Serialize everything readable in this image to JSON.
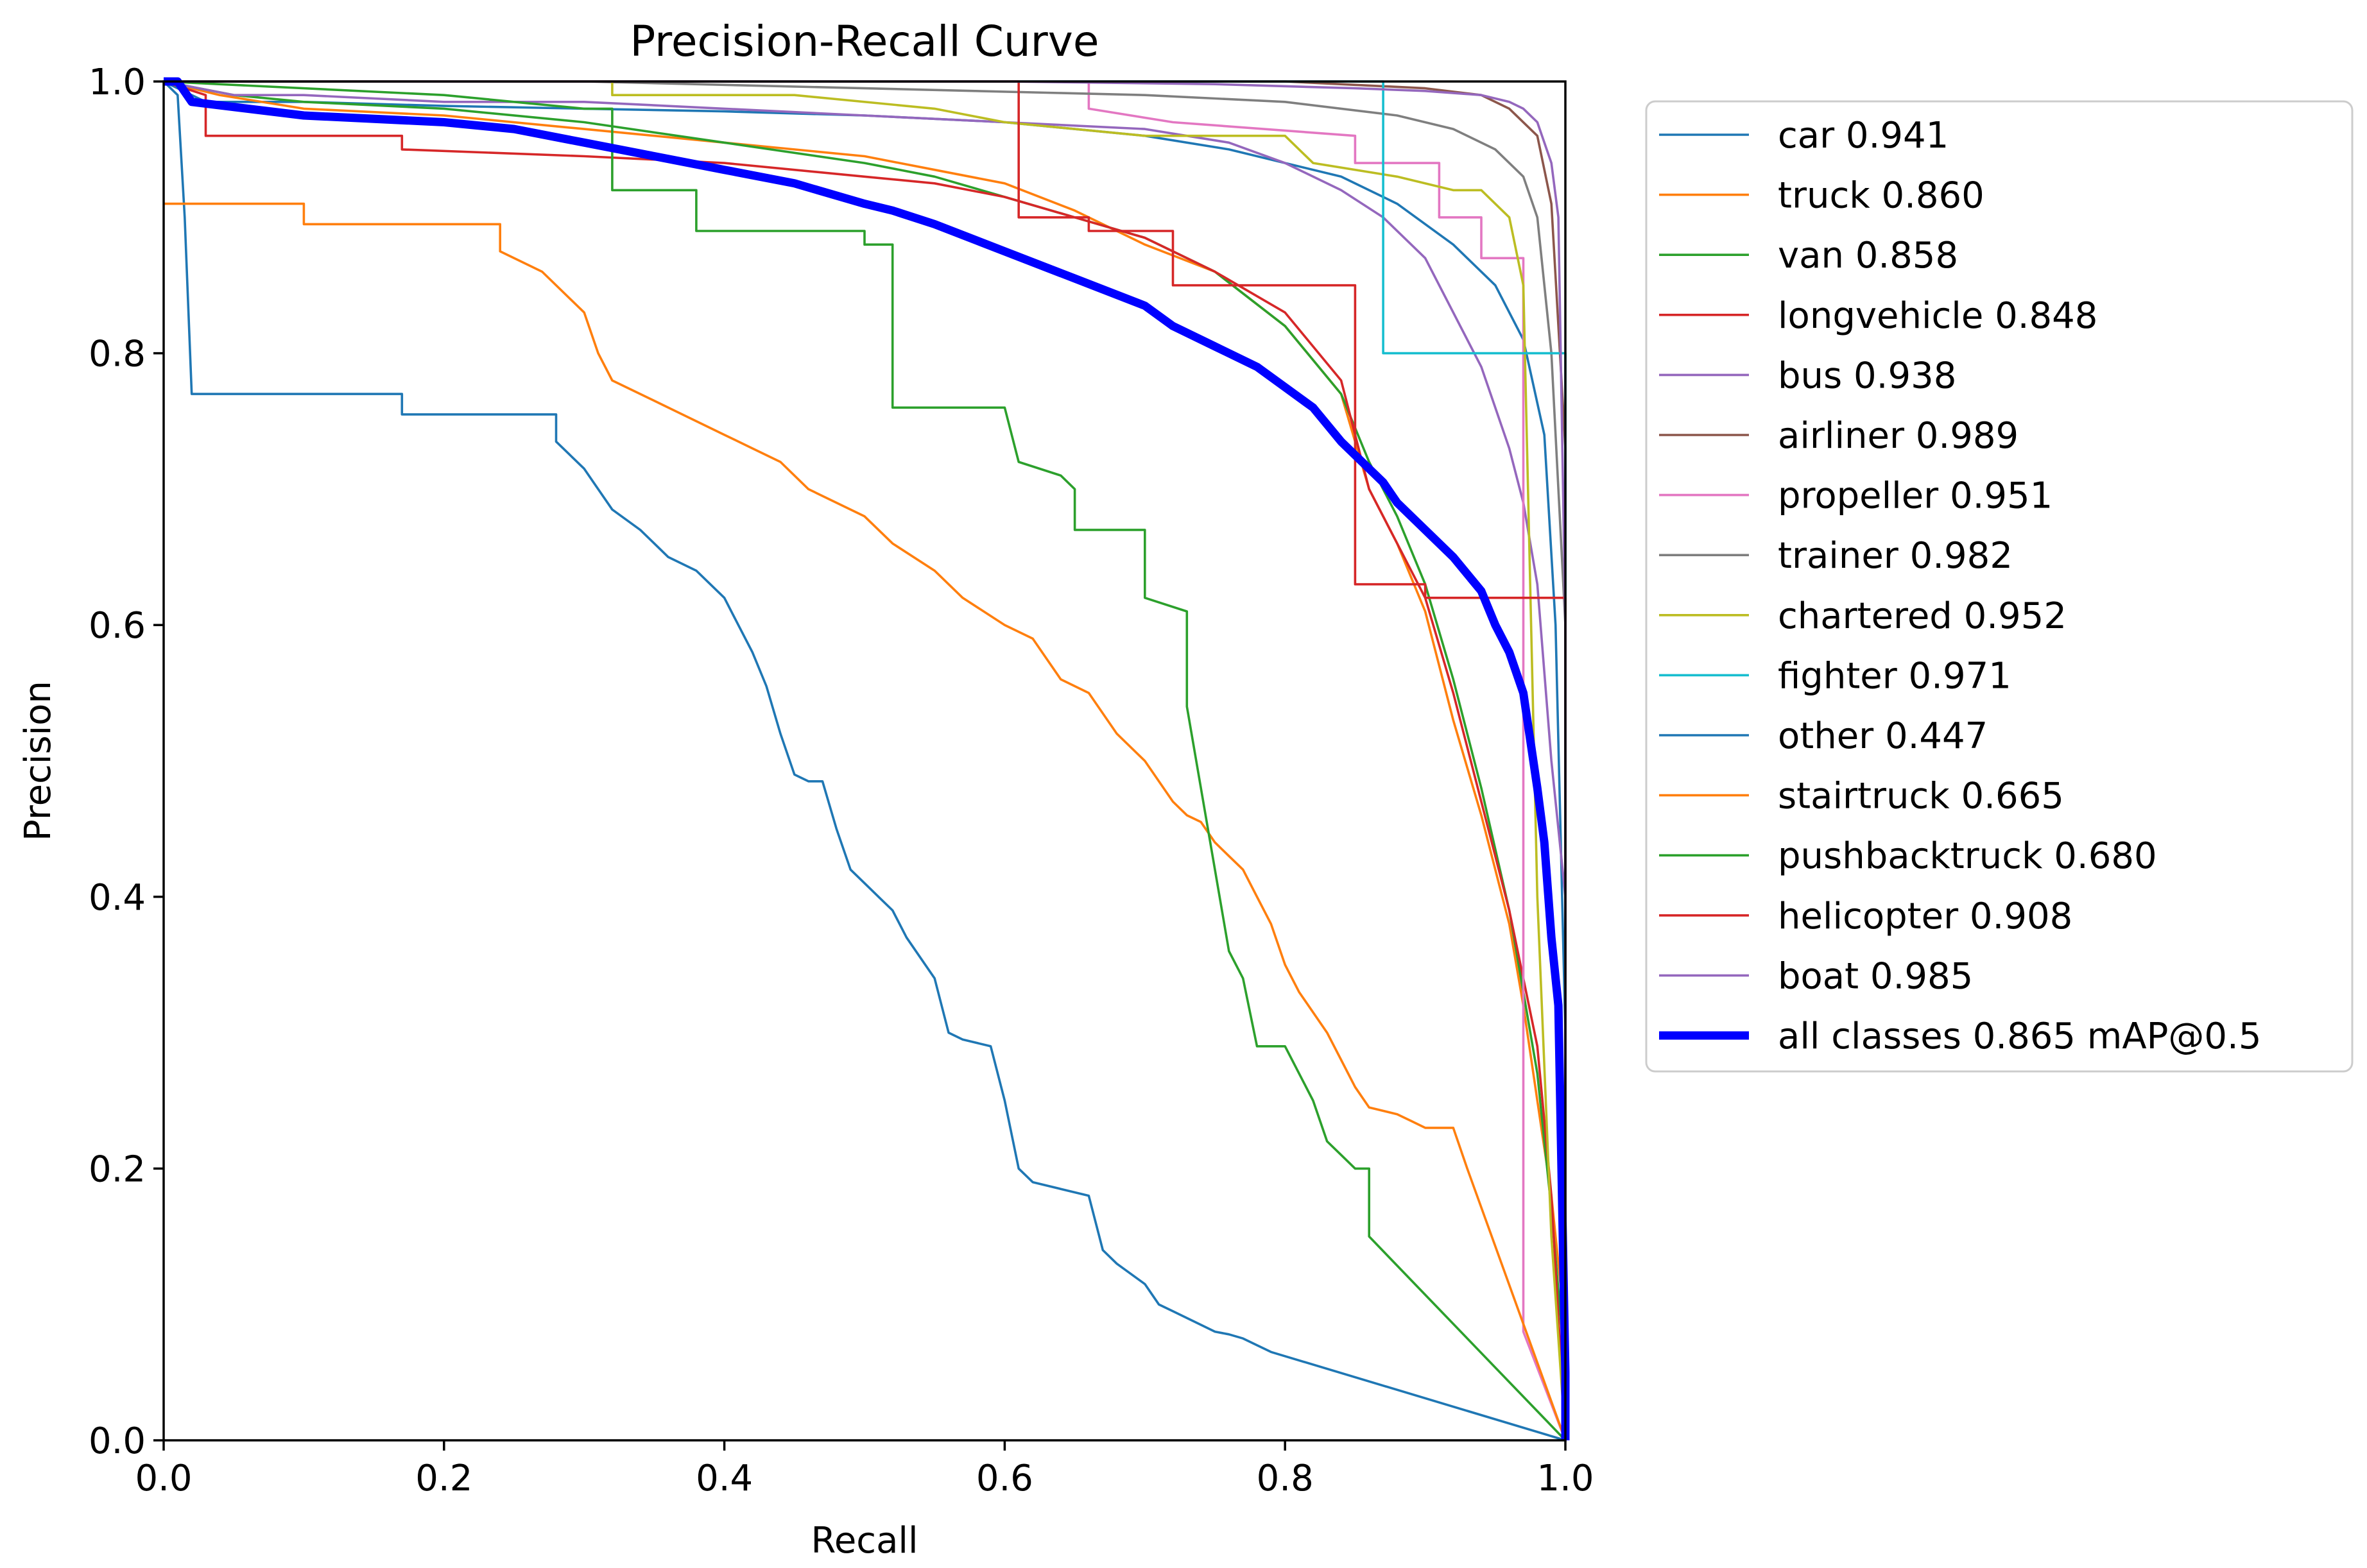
{
  "chart_data": {
    "type": "line",
    "title": "Precision-Recall Curve",
    "xlabel": "Recall",
    "ylabel": "Precision",
    "xlim": [
      0,
      1
    ],
    "ylim": [
      0,
      1
    ],
    "xticks": [
      {
        "v": 0,
        "label": "0.0"
      },
      {
        "v": 0.2,
        "label": "0.2"
      },
      {
        "v": 0.4,
        "label": "0.4"
      },
      {
        "v": 0.6,
        "label": "0.6"
      },
      {
        "v": 0.8,
        "label": "0.8"
      },
      {
        "v": 1,
        "label": "1.0"
      }
    ],
    "yticks": [
      {
        "v": 0,
        "label": "0.0"
      },
      {
        "v": 0.2,
        "label": "0.2"
      },
      {
        "v": 0.4,
        "label": "0.4"
      },
      {
        "v": 0.6,
        "label": "0.6"
      },
      {
        "v": 0.8,
        "label": "0.8"
      },
      {
        "v": 1,
        "label": "1.0"
      }
    ],
    "legend_position": "outside-right",
    "series": [
      {
        "name": "car",
        "ap": "0.941",
        "label": "car 0.941",
        "color": "#1f77b4",
        "width": "thin",
        "x": [
          0,
          0.03,
          0.1,
          0.2,
          0.3,
          0.4,
          0.5,
          0.6,
          0.7,
          0.76,
          0.8,
          0.84,
          0.88,
          0.92,
          0.95,
          0.97,
          0.985,
          0.993,
          1.0,
          1.0
        ],
        "y": [
          1.0,
          0.985,
          0.985,
          0.982,
          0.98,
          0.978,
          0.975,
          0.97,
          0.96,
          0.95,
          0.94,
          0.93,
          0.91,
          0.88,
          0.85,
          0.81,
          0.74,
          0.6,
          0.3,
          0.0
        ]
      },
      {
        "name": "truck",
        "ap": "0.860",
        "label": "truck 0.860",
        "color": "#ff7f0e",
        "width": "thin",
        "x": [
          0,
          0.04,
          0.1,
          0.2,
          0.3,
          0.4,
          0.5,
          0.55,
          0.6,
          0.65,
          0.7,
          0.75,
          0.8,
          0.84,
          0.86,
          0.88,
          0.9,
          0.92,
          0.94,
          0.96,
          0.97,
          0.98,
          0.99,
          1.0,
          1.0
        ],
        "y": [
          1.0,
          0.99,
          0.98,
          0.975,
          0.965,
          0.955,
          0.945,
          0.935,
          0.925,
          0.905,
          0.88,
          0.86,
          0.82,
          0.77,
          0.7,
          0.66,
          0.61,
          0.53,
          0.46,
          0.38,
          0.32,
          0.25,
          0.18,
          0.08,
          0.0
        ]
      },
      {
        "name": "van",
        "ap": "0.858",
        "label": "van 0.858",
        "color": "#2ca02c",
        "width": "thin",
        "x": [
          0,
          0.05,
          0.1,
          0.2,
          0.3,
          0.4,
          0.5,
          0.55,
          0.6,
          0.65,
          0.7,
          0.75,
          0.8,
          0.84,
          0.86,
          0.88,
          0.9,
          0.92,
          0.94,
          0.96,
          0.98,
          0.99,
          1.0,
          1.0
        ],
        "y": [
          1.0,
          0.99,
          0.985,
          0.98,
          0.97,
          0.955,
          0.94,
          0.93,
          0.915,
          0.9,
          0.885,
          0.86,
          0.82,
          0.77,
          0.72,
          0.68,
          0.63,
          0.56,
          0.48,
          0.39,
          0.27,
          0.17,
          0.05,
          0.0
        ]
      },
      {
        "name": "longvehicle",
        "ap": "0.848",
        "label": "longvehicle 0.848",
        "color": "#d62728",
        "width": "thin",
        "x": [
          0,
          0.03,
          0.03,
          0.17,
          0.17,
          0.3,
          0.4,
          0.5,
          0.55,
          0.6,
          0.65,
          0.7,
          0.75,
          0.8,
          0.84,
          0.86,
          0.88,
          0.9,
          0.92,
          0.94,
          0.96,
          0.98,
          0.99,
          1.0
        ],
        "y": [
          1.0,
          0.99,
          0.96,
          0.96,
          0.95,
          0.945,
          0.94,
          0.93,
          0.925,
          0.915,
          0.9,
          0.885,
          0.86,
          0.83,
          0.78,
          0.7,
          0.66,
          0.62,
          0.55,
          0.47,
          0.39,
          0.29,
          0.18,
          0.0
        ]
      },
      {
        "name": "bus",
        "ap": "0.938",
        "label": "bus 0.938",
        "color": "#9467bd",
        "width": "thin",
        "x": [
          0,
          0.05,
          0.1,
          0.2,
          0.3,
          0.4,
          0.5,
          0.6,
          0.7,
          0.76,
          0.8,
          0.84,
          0.87,
          0.9,
          0.92,
          0.94,
          0.96,
          0.97,
          0.98,
          0.99,
          1.0,
          1.0
        ],
        "y": [
          1.0,
          0.99,
          0.99,
          0.985,
          0.985,
          0.98,
          0.975,
          0.97,
          0.965,
          0.955,
          0.94,
          0.92,
          0.9,
          0.87,
          0.83,
          0.79,
          0.73,
          0.69,
          0.63,
          0.5,
          0.4,
          0.0
        ]
      },
      {
        "name": "airliner",
        "ap": "0.989",
        "label": "airliner 0.989",
        "color": "#8c564b",
        "width": "thin",
        "x": [
          0,
          0.1,
          0.2,
          0.4,
          0.6,
          0.8,
          0.9,
          0.94,
          0.96,
          0.98,
          0.99,
          0.995,
          1.0,
          1.0
        ],
        "y": [
          1.0,
          1.0,
          1.0,
          1.0,
          1.0,
          1.0,
          0.995,
          0.99,
          0.98,
          0.96,
          0.91,
          0.82,
          0.73,
          0.0
        ]
      },
      {
        "name": "propeller",
        "ap": "0.951",
        "label": "propeller 0.951",
        "color": "#e377c2",
        "width": "thin",
        "x": [
          0,
          0.66,
          0.66,
          0.72,
          0.85,
          0.85,
          0.91,
          0.91,
          0.94,
          0.94,
          0.97,
          0.97,
          1.0
        ],
        "y": [
          1.0,
          1.0,
          0.98,
          0.97,
          0.96,
          0.94,
          0.94,
          0.9,
          0.9,
          0.87,
          0.87,
          0.08,
          0.0
        ]
      },
      {
        "name": "trainer",
        "ap": "0.982",
        "label": "trainer 0.982",
        "color": "#7f7f7f",
        "width": "thin",
        "x": [
          0,
          0.3,
          0.5,
          0.7,
          0.8,
          0.88,
          0.92,
          0.95,
          0.97,
          0.98,
          0.99,
          1.0,
          1.0
        ],
        "y": [
          1.0,
          1.0,
          0.995,
          0.99,
          0.985,
          0.975,
          0.965,
          0.95,
          0.93,
          0.9,
          0.8,
          0.6,
          0.0
        ]
      },
      {
        "name": "chartered",
        "ap": "0.952",
        "label": "chartered 0.952",
        "color": "#bcbd22",
        "width": "thin",
        "x": [
          0,
          0.32,
          0.32,
          0.45,
          0.55,
          0.6,
          0.7,
          0.8,
          0.82,
          0.88,
          0.92,
          0.94,
          0.96,
          0.97,
          0.98,
          0.99,
          1.0
        ],
        "y": [
          1.0,
          1.0,
          0.99,
          0.99,
          0.98,
          0.97,
          0.96,
          0.96,
          0.94,
          0.93,
          0.92,
          0.92,
          0.9,
          0.85,
          0.4,
          0.15,
          0.0
        ]
      },
      {
        "name": "fighter",
        "ap": "0.971",
        "label": "fighter 0.971",
        "color": "#17becf",
        "width": "thin",
        "x": [
          0,
          0.87,
          0.87,
          0.87,
          1.0,
          1.0
        ],
        "y": [
          1.0,
          1.0,
          1.0,
          0.8,
          0.8,
          0.0
        ]
      },
      {
        "name": "other",
        "ap": "0.447",
        "label": "other 0.447",
        "color": "#1f77b4",
        "width": "thin",
        "x": [
          0,
          0.01,
          0.015,
          0.02,
          0.17,
          0.17,
          0.28,
          0.28,
          0.3,
          0.31,
          0.32,
          0.34,
          0.35,
          0.36,
          0.38,
          0.4,
          0.41,
          0.42,
          0.43,
          0.44,
          0.45,
          0.46,
          0.47,
          0.48,
          0.49,
          0.5,
          0.51,
          0.52,
          0.53,
          0.55,
          0.56,
          0.57,
          0.59,
          0.6,
          0.61,
          0.62,
          0.64,
          0.66,
          0.67,
          0.68,
          0.7,
          0.71,
          0.72,
          0.74,
          0.75,
          0.76,
          0.77,
          0.78,
          0.79,
          1.0
        ],
        "y": [
          1.0,
          0.99,
          0.9,
          0.77,
          0.77,
          0.755,
          0.755,
          0.735,
          0.715,
          0.7,
          0.685,
          0.67,
          0.66,
          0.65,
          0.64,
          0.62,
          0.6,
          0.58,
          0.555,
          0.52,
          0.49,
          0.485,
          0.485,
          0.45,
          0.42,
          0.41,
          0.4,
          0.39,
          0.37,
          0.34,
          0.3,
          0.295,
          0.29,
          0.25,
          0.2,
          0.19,
          0.185,
          0.18,
          0.14,
          0.13,
          0.115,
          0.1,
          0.095,
          0.085,
          0.08,
          0.078,
          0.075,
          0.07,
          0.065,
          0.0
        ]
      },
      {
        "name": "stairtruck",
        "ap": "0.665",
        "label": "stairtruck 0.665",
        "color": "#ff7f0e",
        "width": "thin",
        "x": [
          0,
          0.1,
          0.1,
          0.24,
          0.24,
          0.26,
          0.27,
          0.3,
          0.31,
          0.32,
          0.34,
          0.36,
          0.38,
          0.4,
          0.42,
          0.44,
          0.46,
          0.5,
          0.52,
          0.55,
          0.57,
          0.6,
          0.62,
          0.64,
          0.66,
          0.68,
          0.7,
          0.72,
          0.73,
          0.74,
          0.75,
          0.76,
          0.77,
          0.78,
          0.79,
          0.8,
          0.81,
          0.83,
          0.84,
          0.85,
          0.86,
          0.88,
          0.89,
          0.9,
          0.92,
          0.93,
          1.0
        ],
        "y": [
          0.91,
          0.91,
          0.895,
          0.895,
          0.875,
          0.865,
          0.86,
          0.83,
          0.8,
          0.78,
          0.77,
          0.76,
          0.75,
          0.74,
          0.73,
          0.72,
          0.7,
          0.68,
          0.66,
          0.64,
          0.62,
          0.6,
          0.59,
          0.56,
          0.55,
          0.52,
          0.5,
          0.47,
          0.46,
          0.455,
          0.44,
          0.43,
          0.42,
          0.4,
          0.38,
          0.35,
          0.33,
          0.3,
          0.28,
          0.26,
          0.245,
          0.24,
          0.235,
          0.23,
          0.23,
          0.2,
          0.0
        ]
      },
      {
        "name": "pushbacktruck",
        "ap": "0.680",
        "label": "pushbacktruck 0.680",
        "color": "#2ca02c",
        "width": "thin",
        "x": [
          0,
          0.2,
          0.3,
          0.32,
          0.32,
          0.38,
          0.38,
          0.5,
          0.5,
          0.52,
          0.52,
          0.6,
          0.61,
          0.64,
          0.65,
          0.65,
          0.7,
          0.7,
          0.73,
          0.73,
          0.76,
          0.76,
          0.77,
          0.78,
          0.8,
          0.82,
          0.83,
          0.84,
          0.85,
          0.86,
          0.86,
          1.0
        ],
        "y": [
          1.0,
          0.99,
          0.98,
          0.98,
          0.92,
          0.92,
          0.89,
          0.89,
          0.88,
          0.88,
          0.76,
          0.76,
          0.72,
          0.71,
          0.7,
          0.67,
          0.67,
          0.62,
          0.61,
          0.54,
          0.36,
          0.36,
          0.34,
          0.29,
          0.29,
          0.25,
          0.22,
          0.21,
          0.2,
          0.2,
          0.15,
          0.0
        ]
      },
      {
        "name": "helicopter",
        "ap": "0.908",
        "label": "helicopter 0.908",
        "color": "#d62728",
        "width": "thin",
        "x": [
          0,
          0.6,
          0.61,
          0.61,
          0.66,
          0.66,
          0.72,
          0.72,
          0.84,
          0.84,
          0.85,
          0.85,
          0.9,
          0.9,
          0.96,
          0.96,
          1.0,
          1.0
        ],
        "y": [
          1.0,
          1.0,
          1.0,
          0.9,
          0.9,
          0.89,
          0.89,
          0.85,
          0.85,
          0.85,
          0.85,
          0.63,
          0.63,
          0.62,
          0.62,
          0.62,
          0.62,
          0.0
        ]
      },
      {
        "name": "boat",
        "ap": "0.985",
        "label": "boat 0.985",
        "color": "#9467bd",
        "width": "thin",
        "x": [
          0,
          0.2,
          0.4,
          0.6,
          0.75,
          0.85,
          0.9,
          0.94,
          0.96,
          0.97,
          0.98,
          0.99,
          0.995,
          1.0,
          1.0
        ],
        "y": [
          1.0,
          1.0,
          1.0,
          1.0,
          0.998,
          0.995,
          0.993,
          0.99,
          0.985,
          0.98,
          0.97,
          0.94,
          0.9,
          0.6,
          0.0
        ]
      },
      {
        "name": "all classes",
        "ap": "0.865",
        "label": "all classes 0.865 mAP@0.5",
        "color": "#0000ff",
        "width": "thick",
        "x": [
          0,
          0.01,
          0.02,
          0.1,
          0.2,
          0.25,
          0.3,
          0.35,
          0.4,
          0.45,
          0.5,
          0.52,
          0.55,
          0.6,
          0.65,
          0.7,
          0.72,
          0.75,
          0.78,
          0.8,
          0.82,
          0.84,
          0.855,
          0.87,
          0.88,
          0.9,
          0.92,
          0.94,
          0.95,
          0.96,
          0.97,
          0.98,
          0.985,
          0.99,
          0.995,
          1.0,
          1.0
        ],
        "y": [
          1.0,
          1.0,
          0.985,
          0.975,
          0.97,
          0.965,
          0.955,
          0.945,
          0.935,
          0.925,
          0.91,
          0.905,
          0.895,
          0.875,
          0.855,
          0.835,
          0.82,
          0.805,
          0.79,
          0.775,
          0.76,
          0.735,
          0.72,
          0.705,
          0.69,
          0.67,
          0.65,
          0.625,
          0.6,
          0.58,
          0.55,
          0.48,
          0.44,
          0.37,
          0.32,
          0.05,
          0.0
        ]
      }
    ]
  }
}
